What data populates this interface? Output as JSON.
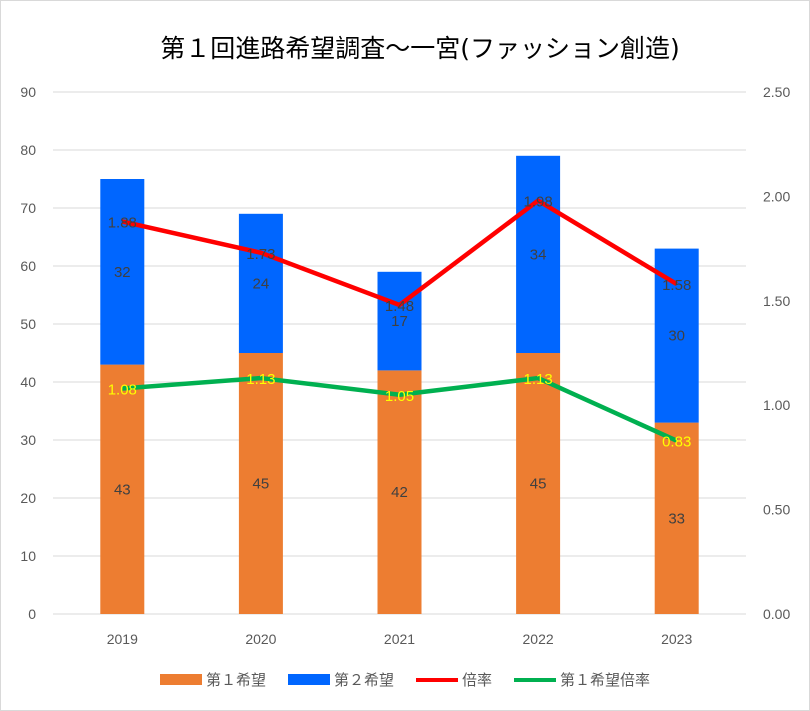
{
  "chart_data": {
    "type": "bar",
    "title": "第１回進路希望調査～一宮(ファッション創造)",
    "categories": [
      "2019",
      "2020",
      "2021",
      "2022",
      "2023"
    ],
    "series": [
      {
        "name": "第１希望",
        "type": "stacked-bar",
        "axis": "left",
        "color": "#ED7D31",
        "values": [
          43,
          45,
          42,
          45,
          33
        ],
        "labels": [
          "43",
          "45",
          "42",
          "45",
          "33"
        ]
      },
      {
        "name": "第２希望",
        "type": "stacked-bar",
        "axis": "left",
        "color": "#0066FF",
        "values": [
          32,
          24,
          17,
          34,
          30
        ],
        "labels": [
          "32",
          "24",
          "17",
          "34",
          "30"
        ]
      },
      {
        "name": "倍率",
        "type": "line",
        "axis": "right",
        "color": "#FF0000",
        "values": [
          1.88,
          1.73,
          1.48,
          1.98,
          1.58
        ],
        "labels": [
          "1.88",
          "1.73",
          "1.48",
          "1.98",
          "1.58"
        ]
      },
      {
        "name": "第１希望倍率",
        "type": "line",
        "axis": "right",
        "color": "#00B050",
        "values": [
          1.08,
          1.13,
          1.05,
          1.13,
          0.83
        ],
        "labels": [
          "1.08",
          "1.13",
          "1.05",
          "1.13",
          "0.83"
        ]
      }
    ],
    "ylim": [
      0,
      90
    ],
    "y_ticks": [
      "0",
      "10",
      "20",
      "30",
      "40",
      "50",
      "60",
      "70",
      "80",
      "90"
    ],
    "y2lim": [
      0,
      2.5
    ],
    "y2_ticks": [
      "0.00",
      "0.50",
      "1.00",
      "1.50",
      "2.00",
      "2.50"
    ],
    "grid": true,
    "legend": "bottom"
  }
}
